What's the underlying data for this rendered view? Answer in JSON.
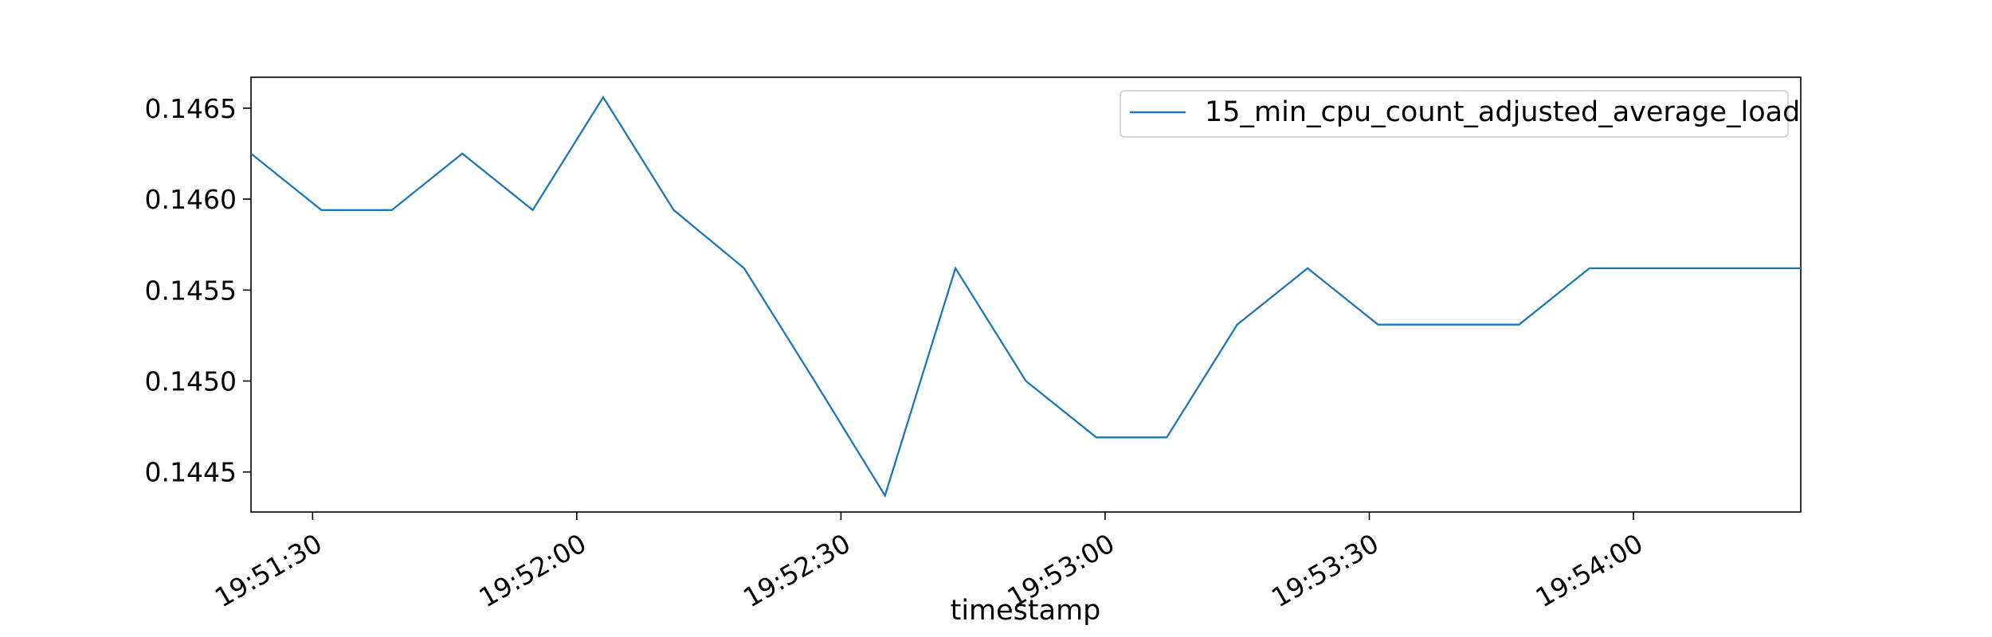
{
  "chart_data": {
    "type": "line",
    "title": "",
    "xlabel": "timestamp",
    "ylabel": "",
    "x_ticks": [
      "19:51:30",
      "19:52:00",
      "19:52:30",
      "19:53:00",
      "19:53:30",
      "19:54:00"
    ],
    "y_ticks": [
      "0.1445",
      "0.1450",
      "0.1455",
      "0.1460",
      "0.1465"
    ],
    "xlim": [
      "19:51:23",
      "19:54:19"
    ],
    "ylim": [
      0.14428,
      0.14667
    ],
    "grid": false,
    "legend_position": "top-right",
    "series": [
      {
        "name": "15_min_cpu_count_adjusted_average_load",
        "color": "#1f77b4",
        "x": [
          "19:51:23",
          "19:51:31",
          "19:51:39",
          "19:51:47",
          "19:51:55",
          "19:52:03",
          "19:52:11",
          "19:52:19",
          "19:52:27",
          "19:52:35",
          "19:52:43",
          "19:52:51",
          "19:52:59",
          "19:53:07",
          "19:53:15",
          "19:53:23",
          "19:53:31",
          "19:53:39",
          "19:53:47",
          "19:53:55",
          "19:54:03",
          "19:54:11",
          "19:54:19"
        ],
        "y": [
          0.14625,
          0.14594,
          0.14594,
          0.14625,
          0.14594,
          0.14656,
          0.14594,
          0.14562,
          0.145,
          0.14437,
          0.14562,
          0.145,
          0.14469,
          0.14469,
          0.14531,
          0.14562,
          0.14531,
          0.14531,
          0.14531,
          0.14562,
          0.14562,
          0.14562,
          0.14562
        ]
      }
    ]
  }
}
